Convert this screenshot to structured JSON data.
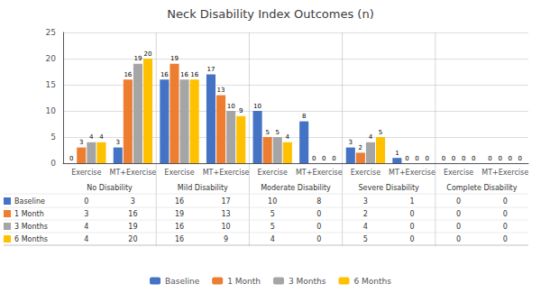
{
  "chart_data": {
    "type": "bar",
    "title": "Neck Disability Index Outcomes (n)",
    "categories": [
      "Exercise",
      "MT+Exercise",
      "Exercise",
      "MT+Exercise",
      "Exercise",
      "MT+Exercise",
      "Exercise",
      "MT+Exercise",
      "Exercise",
      "MT+Exercise"
    ],
    "groups": [
      "No Disability",
      "Mild Disability",
      "Moderate Disability",
      "Severe Disability",
      "Complete Disability"
    ],
    "series": [
      {
        "name": "Baseline",
        "color": "#4472C4",
        "values": [
          0,
          3,
          16,
          17,
          10,
          8,
          3,
          1,
          0,
          0
        ]
      },
      {
        "name": "1 Month",
        "color": "#ED7D31",
        "values": [
          3,
          16,
          19,
          13,
          5,
          0,
          2,
          0,
          0,
          0
        ]
      },
      {
        "name": "3 Months",
        "color": "#A5A5A5",
        "values": [
          4,
          19,
          16,
          10,
          5,
          0,
          4,
          0,
          0,
          0
        ]
      },
      {
        "name": "6 Months",
        "color": "#FFC000",
        "values": [
          4,
          20,
          16,
          9,
          4,
          0,
          5,
          0,
          0,
          0
        ]
      }
    ],
    "ylim": [
      0,
      25
    ],
    "yticks": [
      0,
      5,
      10,
      15,
      20,
      25
    ],
    "grid": true,
    "data_labels": true,
    "legend": "bottom"
  }
}
